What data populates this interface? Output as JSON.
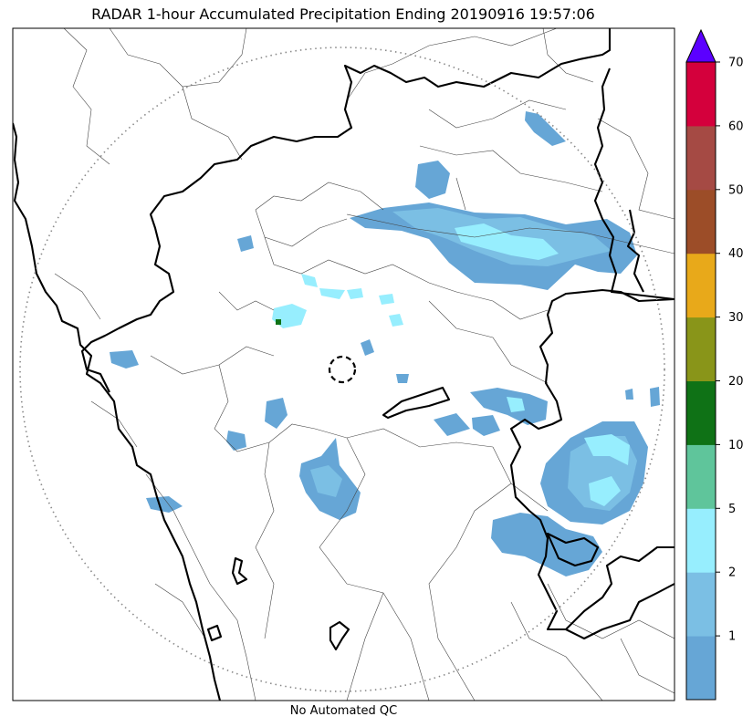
{
  "title": "RADAR 1-hour Accumulated Precipitation Ending 20190916 19:57:06",
  "footer": "No Automated QC",
  "colorbar": {
    "bins": [
      {
        "color": "#66a6d6"
      },
      {
        "color": "#7bbfe4"
      },
      {
        "color": "#97eefe"
      },
      {
        "color": "#5fc59b"
      },
      {
        "color": "#0f7216"
      },
      {
        "color": "#899519"
      },
      {
        "color": "#e8a91a"
      },
      {
        "color": "#9c4d28"
      },
      {
        "color": "#a54a44"
      },
      {
        "color": "#d4003c"
      }
    ],
    "extend_color": "#5b00ff",
    "tick_labels": [
      "1",
      "2",
      "5",
      "10",
      "20",
      "30",
      "40",
      "50",
      "60",
      "70"
    ]
  }
}
